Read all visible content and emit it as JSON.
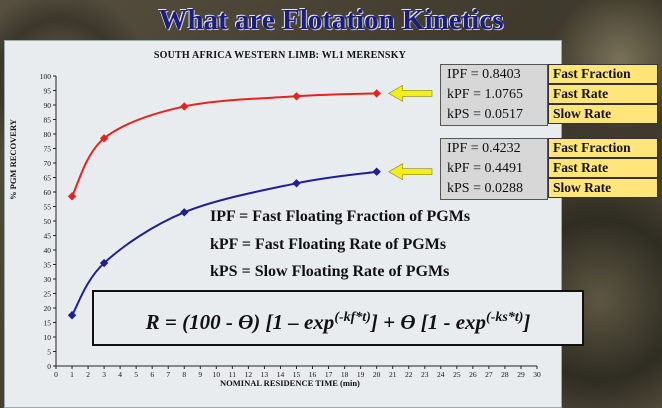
{
  "slide_title": "What are Flotation Kinetics",
  "chart_data": {
    "type": "line",
    "title": "SOUTH AFRICA WESTERN LIMB:  WL1 MERENSKY",
    "xlabel": "NOMINAL RESIDENCE TIME (min)",
    "ylabel": "%  PGM RECOVERY",
    "xlim": [
      0,
      30
    ],
    "ylim": [
      0,
      100
    ],
    "xticks": [
      0,
      1,
      2,
      3,
      4,
      5,
      6,
      7,
      8,
      9,
      10,
      11,
      12,
      13,
      14,
      15,
      16,
      17,
      18,
      19,
      20,
      21,
      22,
      23,
      24,
      25,
      26,
      27,
      28,
      29,
      30
    ],
    "yticks": [
      0,
      5,
      10,
      15,
      20,
      25,
      30,
      35,
      40,
      45,
      50,
      55,
      60,
      65,
      70,
      75,
      80,
      85,
      90,
      95,
      100
    ],
    "series": [
      {
        "x": [
          1,
          3,
          8,
          15,
          20
        ],
        "values": [
          58.5,
          78.5,
          89.5,
          93,
          94
        ],
        "color": "#e8231f"
      },
      {
        "x": [
          1,
          3,
          8,
          15,
          20
        ],
        "values": [
          17.5,
          35.5,
          53,
          63,
          67
        ],
        "color": "#1f1f9a"
      }
    ],
    "grid": false
  },
  "param_boxes": [
    {
      "rows": [
        "IPF  = 0.8403",
        "kPF = 1.0765",
        "kPS  = 0.0517"
      ],
      "labels": [
        "Fast Fraction",
        "Fast Rate",
        "Slow Rate"
      ]
    },
    {
      "rows": [
        "IPF  = 0.4232",
        "kPF = 0.4491",
        "kPS  = 0.0288"
      ],
      "labels": [
        "Fast Fraction",
        "Fast Rate",
        "Slow Rate"
      ]
    }
  ],
  "definitions": [
    "IPF = Fast Floating Fraction of PGMs",
    "kPF = Fast Floating Rate of PGMs",
    "kPS = Slow Floating Rate of PGMs"
  ],
  "equation": {
    "part1": "R = (100 - ϴ) [1 – exp",
    "exp1": "(-kf*t)",
    "part2": "] + ϴ [1 - exp",
    "exp2": "(-ks*t)",
    "part3": "]"
  },
  "colors": {
    "arrow": "#f2ee1a",
    "title": "#1b1f7a",
    "label_bg": "#ffe57a"
  }
}
